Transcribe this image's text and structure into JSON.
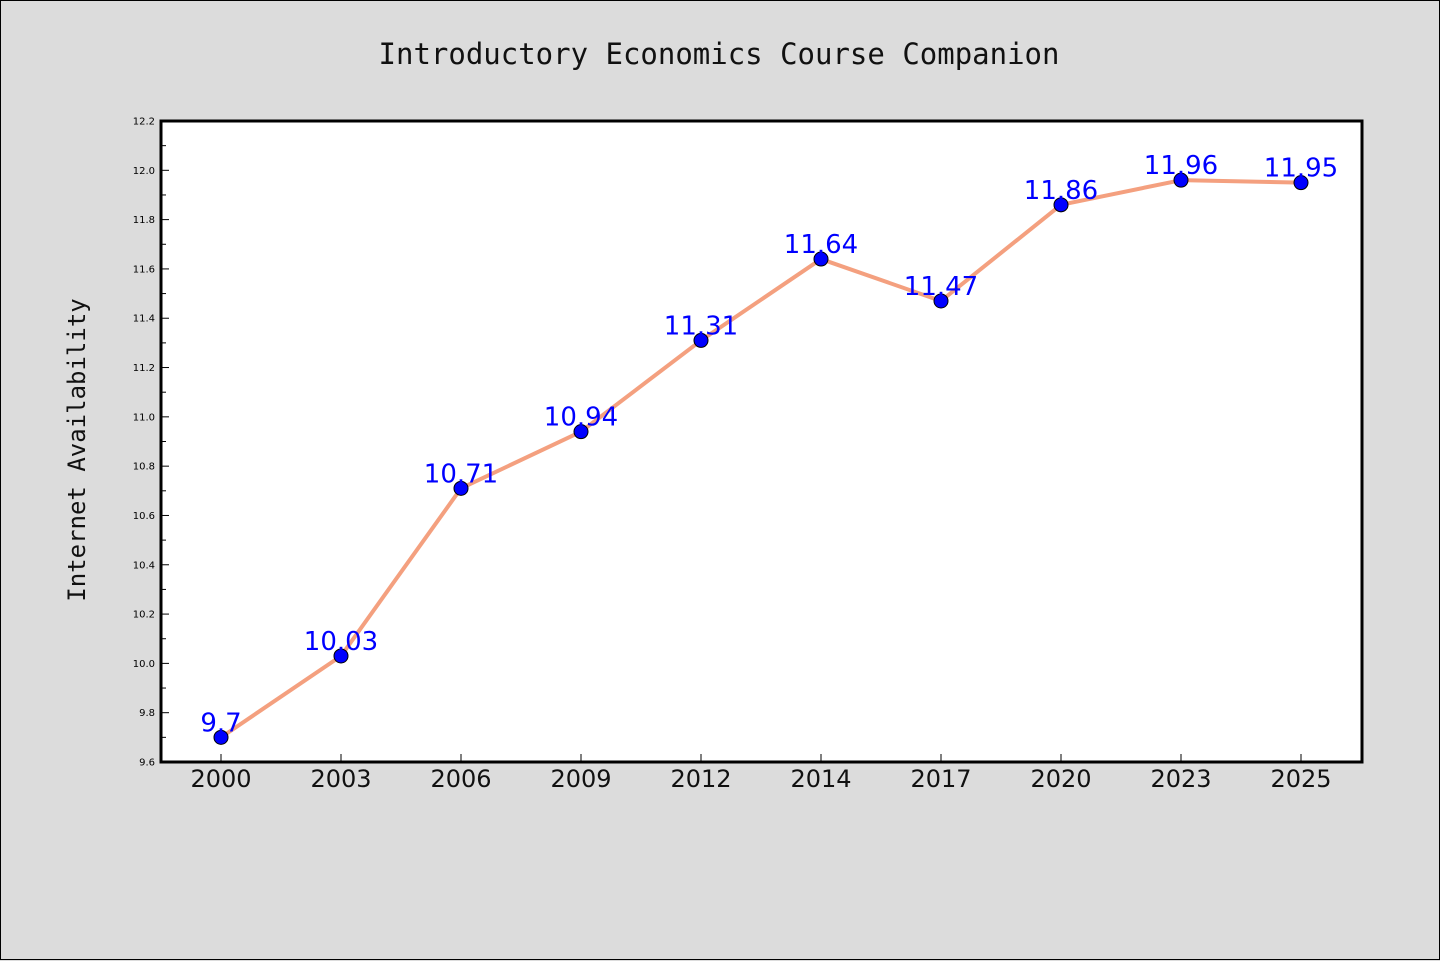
{
  "chart_data": {
    "type": "line",
    "title": "Introductory Economics Course Companion",
    "xlabel": "",
    "ylabel": "Internet Availability",
    "categories": [
      "2000",
      "2003",
      "2006",
      "2009",
      "2012",
      "2014",
      "2017",
      "2020",
      "2023",
      "2025"
    ],
    "series": [
      {
        "values": [
          9.7,
          10.03,
          10.71,
          10.94,
          11.31,
          11.64,
          11.47,
          11.86,
          11.96,
          11.95
        ],
        "data_labels": [
          "9.7",
          "10.03",
          "10.71",
          "10.94",
          "11.31",
          "11.64",
          "11.47",
          "11.86",
          "11.96",
          "11.95"
        ],
        "line_color": "#f4a07f",
        "marker_color": "#0000ff"
      }
    ],
    "ylim": [
      9.6,
      12.2
    ],
    "yticks": [
      "9.6",
      "9.8",
      "10.0",
      "10.2",
      "10.4",
      "10.6",
      "10.8",
      "11.0",
      "11.2",
      "11.4",
      "11.6",
      "11.8",
      "12.0",
      "12.2"
    ],
    "grid": false,
    "legend": "none",
    "colors": {
      "background": "#dcdcdc",
      "plot_background": "#ffffff",
      "data_label": "#0000ff"
    }
  }
}
